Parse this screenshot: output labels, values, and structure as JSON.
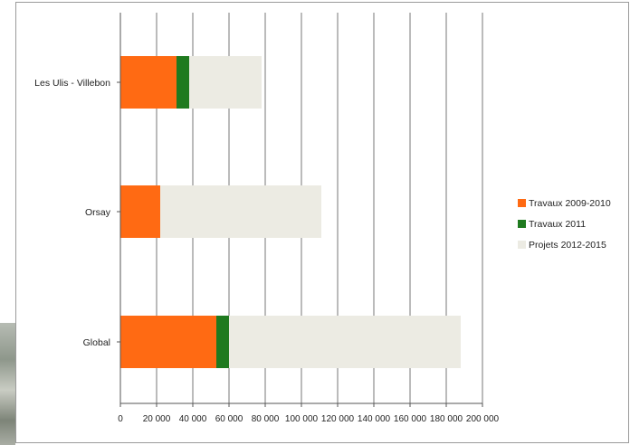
{
  "chart_data": {
    "type": "bar",
    "orientation": "horizontal",
    "stacked": true,
    "categories": [
      "Les Ulis - Villebon",
      "Orsay",
      "Global"
    ],
    "series": [
      {
        "name": "Travaux  2009-2010",
        "color": "#ff6a13",
        "values": [
          31000,
          22000,
          53000
        ]
      },
      {
        "name": "Travaux 2011",
        "color": "#1f7a1f",
        "values": [
          7000,
          0,
          7000
        ]
      },
      {
        "name": "Projets 2012-2015",
        "color": "#ecebe3",
        "values": [
          40000,
          89000,
          128000
        ]
      }
    ],
    "xlim": [
      0,
      200000
    ],
    "xticks": [
      0,
      20000,
      40000,
      60000,
      80000,
      100000,
      120000,
      140000,
      160000,
      180000,
      200000
    ],
    "xtick_labels": [
      "0",
      "20 000",
      "40 000",
      "60 000",
      "80 000",
      "100 000",
      "120 000",
      "140 000",
      "160 000",
      "180 000",
      "200 000"
    ],
    "grid": "vertical",
    "legend": "right"
  }
}
